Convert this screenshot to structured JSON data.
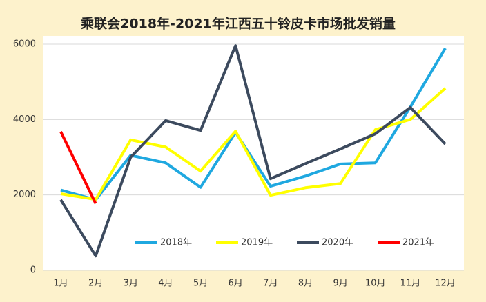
{
  "chart_data": {
    "type": "line",
    "title": "乘联会2018年-2021年江西五十铃皮卡市场批发销量",
    "categories": [
      "1月",
      "2月",
      "3月",
      "4月",
      "5月",
      "6月",
      "7月",
      "8月",
      "9月",
      "10月",
      "11月",
      "12月"
    ],
    "series": [
      {
        "name": "2018年",
        "color": "#1fa8e0",
        "values": [
          2130,
          1870,
          3050,
          2850,
          2200,
          3660,
          2230,
          2500,
          2820,
          2850,
          4330,
          5890
        ]
      },
      {
        "name": "2019年",
        "color": "#ffff00",
        "values": [
          2030,
          1880,
          3460,
          3270,
          2630,
          3690,
          1990,
          2190,
          2300,
          3730,
          4000,
          4830
        ]
      },
      {
        "name": "2020年",
        "color": "#3c4a5e",
        "values": [
          1870,
          380,
          3000,
          3970,
          3710,
          5960,
          2430,
          2830,
          3220,
          3620,
          4320,
          3350
        ]
      },
      {
        "name": "2021年",
        "color": "#ff0000",
        "values": [
          3680,
          1770,
          null,
          null,
          null,
          null,
          null,
          null,
          null,
          null,
          null,
          null
        ]
      }
    ],
    "ylim": [
      0,
      6000
    ],
    "yticks": [
      0,
      2000,
      4000,
      6000
    ],
    "grid": true
  }
}
